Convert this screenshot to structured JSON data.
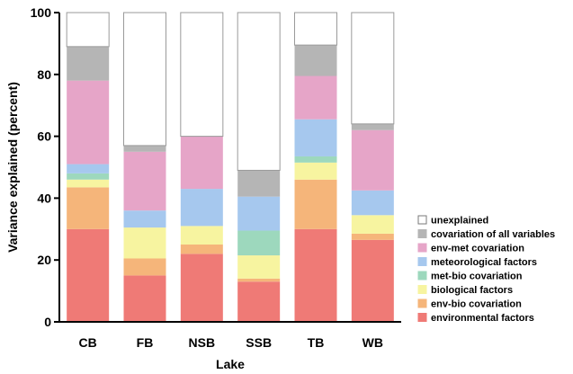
{
  "chart_data": {
    "type": "bar",
    "stacked": true,
    "xlabel": "Lake",
    "ylabel": "Variance explained (percent)",
    "ylim": [
      0,
      100
    ],
    "yticks": [
      0,
      20,
      40,
      60,
      80,
      100
    ],
    "grid": false,
    "legend_position": "right",
    "categories": [
      "CB",
      "FB",
      "NSB",
      "SSB",
      "TB",
      "WB"
    ],
    "series": [
      {
        "name": "environmental factors",
        "color": "#ef7a76",
        "values": [
          30,
          15,
          22,
          13,
          30,
          26.5
        ]
      },
      {
        "name": "env-bio covariation",
        "color": "#f5b57a",
        "values": [
          13.5,
          5.5,
          3,
          1,
          16,
          2
        ]
      },
      {
        "name": "biological factors",
        "color": "#f7f4a0",
        "values": [
          2.5,
          10,
          6,
          7.5,
          5.5,
          6
        ]
      },
      {
        "name": "met-bio covariation",
        "color": "#9dd8bd",
        "values": [
          2,
          0,
          0,
          8,
          2,
          0
        ]
      },
      {
        "name": "meteorological factors",
        "color": "#a6c8ee",
        "values": [
          3,
          5.5,
          12,
          11,
          12,
          8
        ]
      },
      {
        "name": "env-met covariation",
        "color": "#e6a5c8",
        "values": [
          27,
          19,
          17,
          0,
          14,
          19.5
        ]
      },
      {
        "name": "covariation of all variables",
        "color": "#b5b5b5",
        "values": [
          11,
          2,
          0,
          8.5,
          10,
          2
        ]
      },
      {
        "name": "unexplained",
        "color": "#ffffff",
        "values": [
          11,
          43,
          40,
          51,
          10.5,
          36
        ]
      }
    ],
    "legend_order": [
      "unexplained",
      "covariation of all variables",
      "env-met covariation",
      "meteorological factors",
      "met-bio covariation",
      "biological factors",
      "env-bio covariation",
      "environmental factors"
    ]
  }
}
